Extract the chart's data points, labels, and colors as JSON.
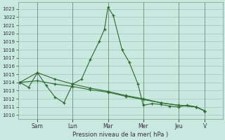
{
  "xlabel": "Pression niveau de la mer( hPa )",
  "bg_color": "#c8e8e0",
  "line_color": "#2d6a2d",
  "grid_color": "#9ec8b8",
  "tick_color": "#333333",
  "yticks": [
    1010,
    1011,
    1012,
    1013,
    1014,
    1015,
    1016,
    1017,
    1018,
    1019,
    1020,
    1021,
    1022,
    1023
  ],
  "x_tick_positions": [
    1,
    3,
    5,
    7,
    9,
    10.5
  ],
  "x_tick_labels": [
    "Sam",
    "Lun",
    "Mar",
    "Mer",
    "Jeu",
    "V"
  ],
  "xlim": [
    -0.1,
    11.5
  ],
  "ylim_low": 1009.5,
  "ylim_high": 1023.8,
  "series1_x": [
    0,
    0.5,
    1.0,
    1.5,
    2.0,
    2.5,
    3.0,
    3.5,
    4.0,
    4.5,
    4.8,
    5.0,
    5.3,
    5.8,
    6.2,
    6.7,
    7.0,
    7.5,
    8.0,
    8.5,
    9.0,
    9.5,
    10.0,
    10.5
  ],
  "series1_y": [
    1014.0,
    1013.4,
    1015.2,
    1013.6,
    1012.2,
    1011.5,
    1013.8,
    1014.4,
    1016.8,
    1019.0,
    1020.5,
    1023.2,
    1022.2,
    1018.0,
    1016.5,
    1013.8,
    1011.2,
    1011.4,
    1011.3,
    1011.1,
    1011.0,
    1011.2,
    1011.0,
    1010.5
  ],
  "series2_x": [
    0,
    1.0,
    2.0,
    3.0,
    4.0,
    5.0,
    6.0,
    7.0,
    8.0,
    9.0,
    10.0,
    10.5
  ],
  "series2_y": [
    1014.0,
    1014.2,
    1013.8,
    1013.5,
    1013.1,
    1012.8,
    1012.3,
    1011.9,
    1011.5,
    1011.2,
    1011.0,
    1010.5
  ],
  "series3_x": [
    0,
    1.0,
    2.0,
    3.0,
    4.0,
    5.0,
    6.0,
    7.0,
    8.0,
    9.0,
    10.0,
    10.5
  ],
  "series3_y": [
    1014.0,
    1015.2,
    1014.4,
    1013.8,
    1013.3,
    1012.9,
    1012.4,
    1012.0,
    1011.5,
    1011.2,
    1011.0,
    1010.5
  ]
}
